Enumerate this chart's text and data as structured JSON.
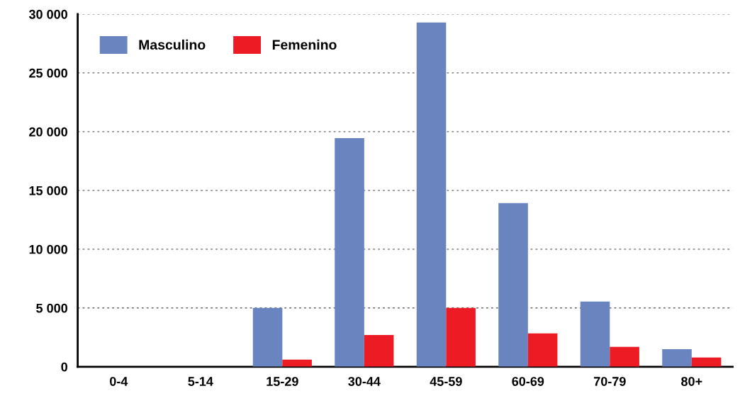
{
  "chart_data": {
    "type": "bar",
    "categories": [
      "0-4",
      "5-14",
      "15-29",
      "30-44",
      "45-59",
      "60-69",
      "70-79",
      "80+"
    ],
    "series": [
      {
        "name": "Masculino",
        "color": "#6a84c0",
        "values": [
          0,
          0,
          5000,
          19450,
          29280,
          13920,
          5540,
          1500
        ]
      },
      {
        "name": "Femenino",
        "color": "#ed1c24",
        "values": [
          0,
          0,
          600,
          2700,
          5000,
          2830,
          1690,
          780
        ]
      }
    ],
    "ylim": [
      0,
      30000
    ],
    "yticks": [
      {
        "value": 0,
        "label": "0"
      },
      {
        "value": 5000,
        "label": "5 000"
      },
      {
        "value": 10000,
        "label": "10 000"
      },
      {
        "value": 15000,
        "label": "15 000"
      },
      {
        "value": 20000,
        "label": "20 000"
      },
      {
        "value": 25000,
        "label": "25 000"
      },
      {
        "value": 30000,
        "label": "30 000"
      }
    ],
    "grid": "y",
    "legend": "top left"
  }
}
